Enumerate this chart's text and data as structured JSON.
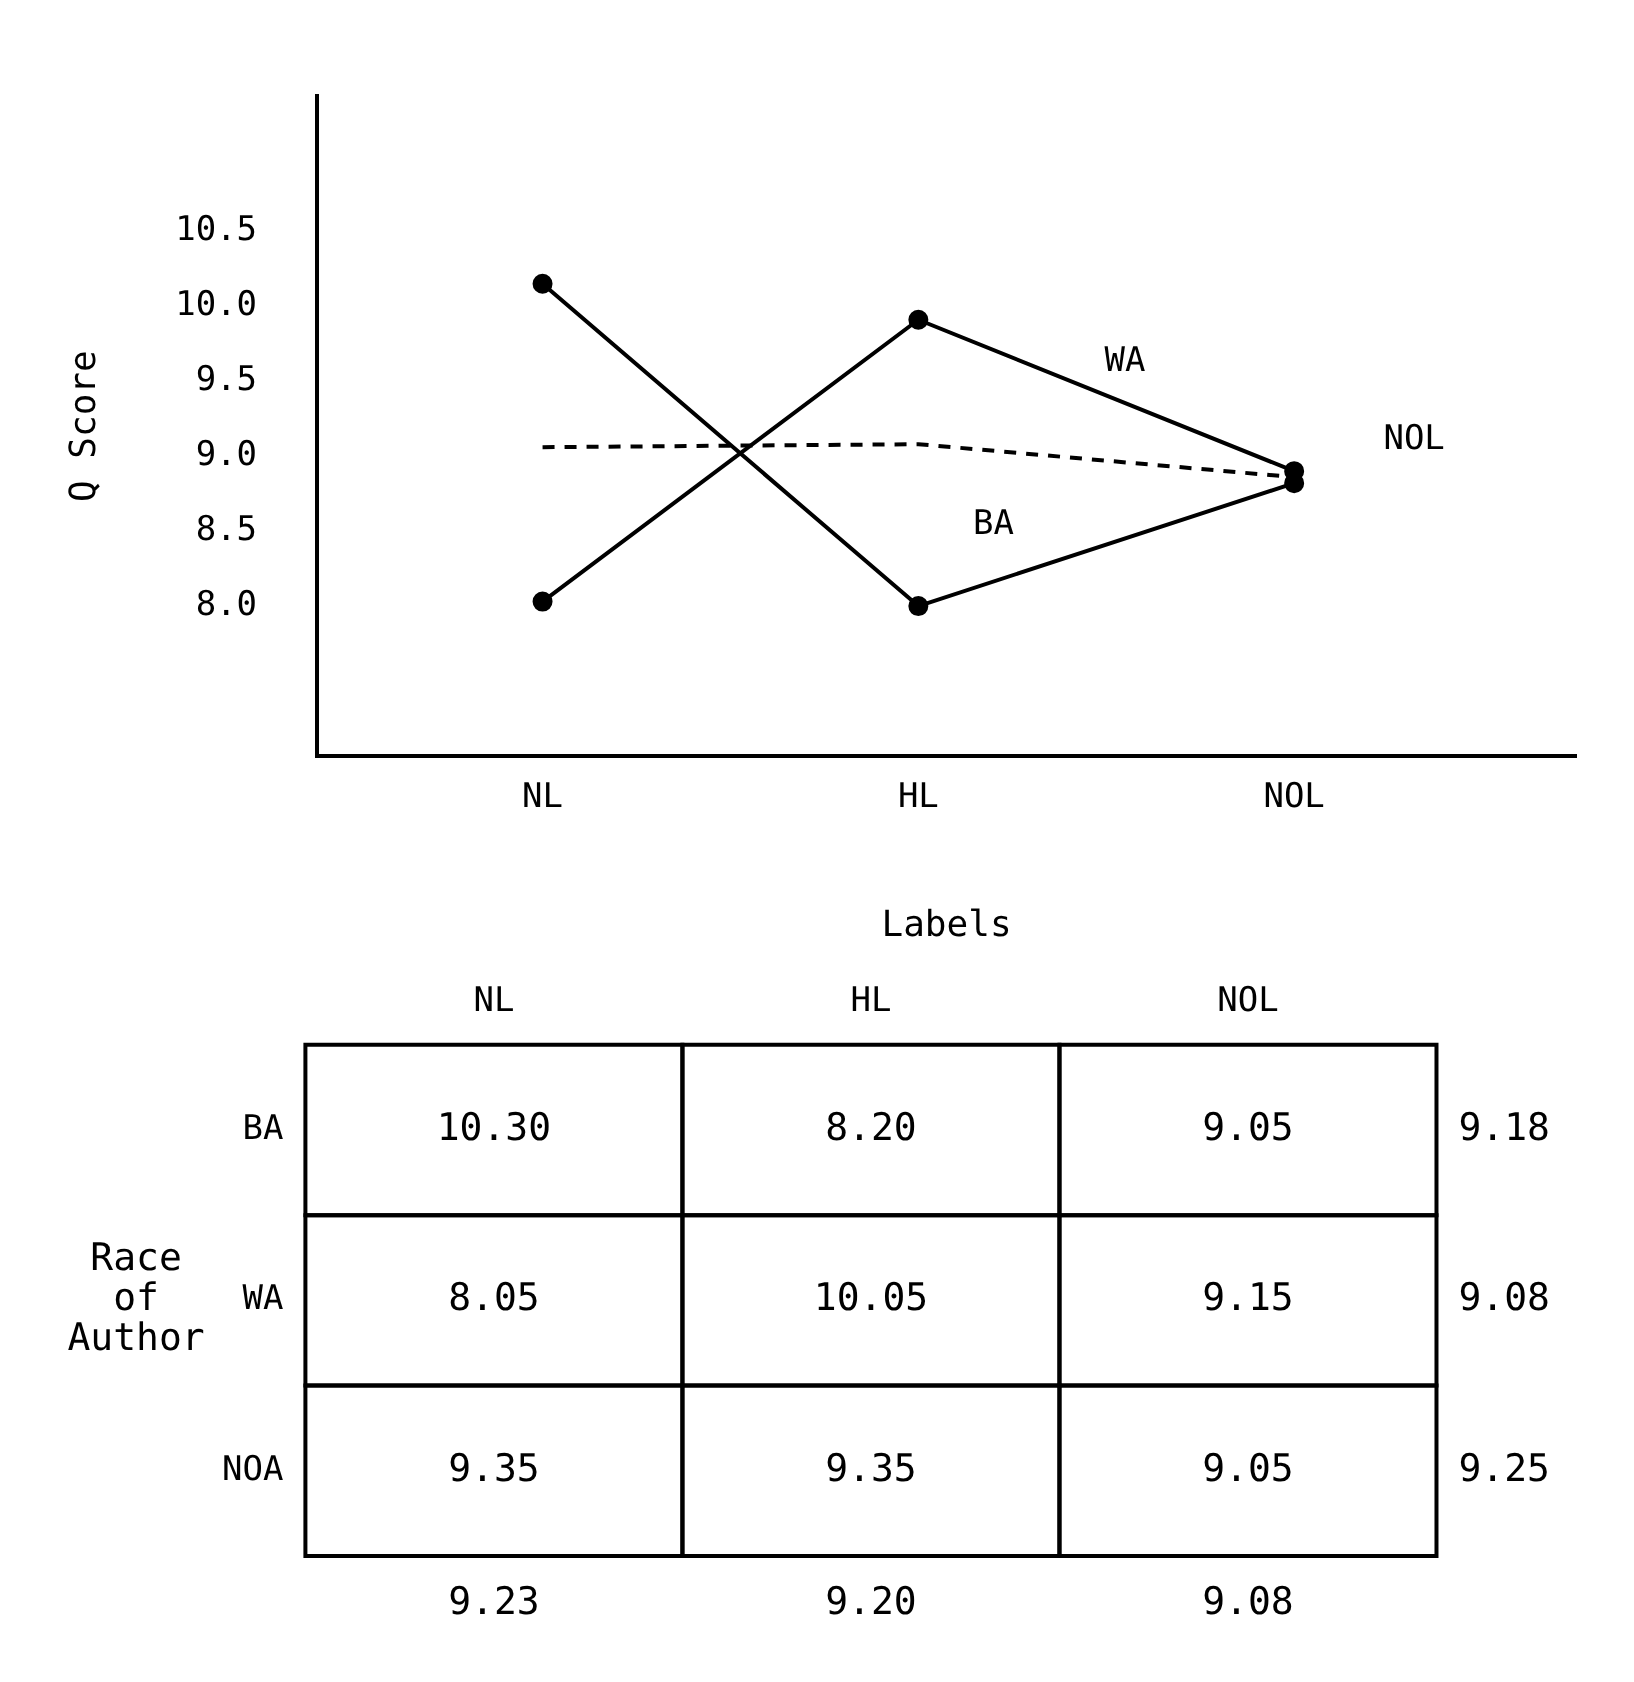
{
  "chart_data": [
    {
      "type": "line",
      "xlabel": "Labels",
      "ylabel": "Q Score",
      "categories": [
        "NL",
        "HL",
        "NOL"
      ],
      "ylim": [
        7.0,
        11.4
      ],
      "yticks": [
        {
          "value": 8,
          "label": "8.0"
        },
        {
          "value": 8.5,
          "label": "8.5"
        },
        {
          "value": 9,
          "label": "9.0"
        },
        {
          "value": 9.5,
          "label": "9.5"
        },
        {
          "value": 10,
          "label": "10.0"
        },
        {
          "value": 10.5,
          "label": "10.5"
        }
      ],
      "grid": false,
      "legend": false,
      "series": [
        {
          "name": "BA",
          "color": "#000000",
          "values": [
            10.15,
            8.0,
            8.82
          ],
          "marker": "circle",
          "line_style": "solid"
        },
        {
          "name": "WA",
          "color": "#000000",
          "values": [
            8.03,
            9.91,
            8.9
          ],
          "marker": "circle",
          "line_style": "solid"
        },
        {
          "name": "NOL",
          "color": "#000000",
          "values": [
            9.06,
            9.08,
            8.86
          ],
          "marker": "none",
          "line_style": "dashed"
        }
      ]
    },
    {
      "type": "heatmap",
      "ylabel": "Race of Author",
      "categories": [
        "NL",
        "HL",
        "NOL"
      ],
      "y_categories": [
        "BA",
        "WA",
        "NOA"
      ],
      "y2_categories": [
        "9.18",
        "9.08",
        "9.25"
      ],
      "cells": [
        [
          10.3,
          8.2,
          9.05
        ],
        [
          8.05,
          10.05,
          9.15
        ],
        [
          9.35,
          9.35,
          9.05
        ]
      ],
      "data_labels": true,
      "cell_labels": [
        [
          "10.30",
          "8.20",
          "9.05"
        ],
        [
          "8.05",
          "10.05",
          "9.15"
        ],
        [
          "9.35",
          "9.35",
          "9.05"
        ]
      ],
      "annotations": [
        "9.23",
        "9.20",
        "9.08"
      ]
    }
  ]
}
